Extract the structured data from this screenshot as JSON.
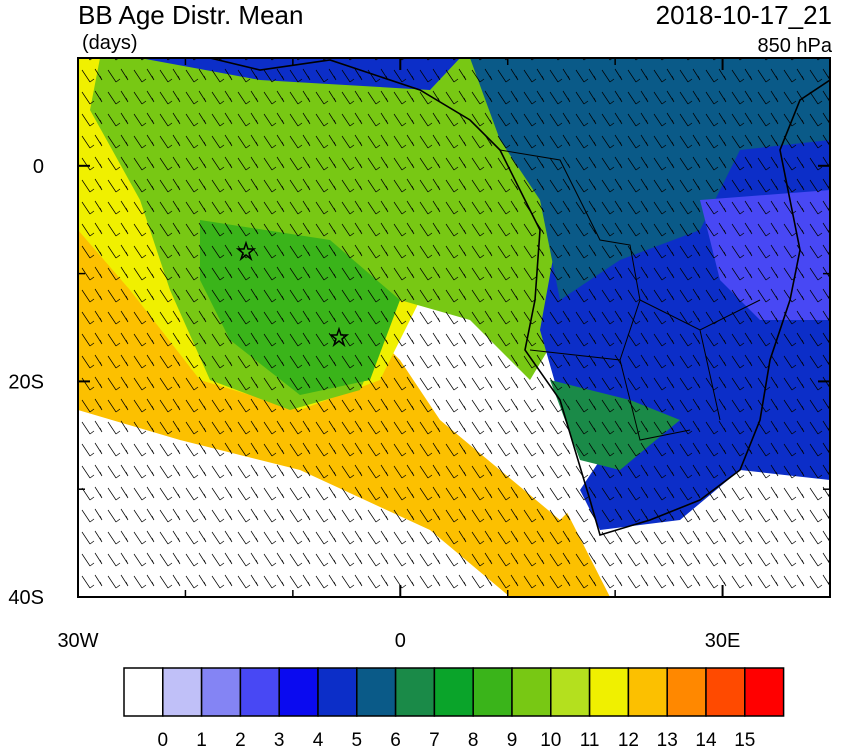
{
  "chart_data": {
    "type": "map",
    "title": "BB Age Distr. Mean",
    "subtitle": "(days)",
    "time": "2018-10-17_21",
    "level": "850 hPa",
    "xlim": [
      -30,
      40
    ],
    "ylim": [
      -40,
      10
    ],
    "xticks": [
      {
        "value": -30,
        "label": "30W"
      },
      0,
      {
        "value": 30,
        "label": "30E"
      }
    ],
    "xminorticks": [
      -20,
      -10,
      10,
      20,
      40
    ],
    "yticks": [
      {
        "value": -40,
        "label": "40S"
      },
      {
        "value": -20,
        "label": "20S"
      },
      0
    ],
    "yminorticks": [
      -30,
      -10,
      10
    ],
    "colorbar": {
      "levels": [
        0,
        1,
        2,
        3,
        4,
        5,
        6,
        7,
        8,
        9,
        10,
        11,
        12,
        13,
        14,
        15
      ],
      "colors": [
        "#ffffff",
        "#c0c0f8",
        "#8484f4",
        "#4848f4",
        "#0a0af0",
        "#0c2ec8",
        "#0a5a88",
        "#1a8a48",
        "#0aa42a",
        "#3ab41a",
        "#78c814",
        "#b4e01e",
        "#f0f000",
        "#fcc000",
        "#ff8800",
        "#ff4a00",
        "#ff0000"
      ]
    }
  }
}
